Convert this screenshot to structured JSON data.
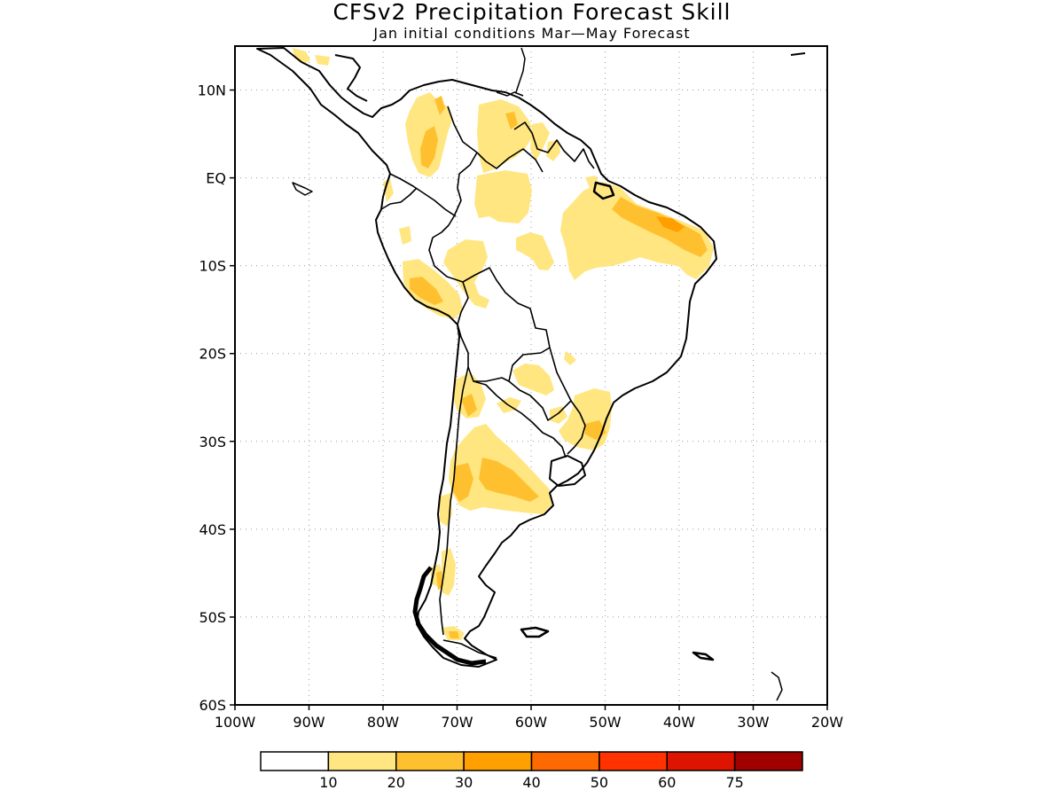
{
  "title": "CFSv2 Precipitation Forecast Skill",
  "subtitle": "Jan initial conditions  Mar—May Forecast",
  "map": {
    "region": "South America",
    "lon_range": [
      -100,
      -20
    ],
    "lat_range": [
      -60,
      15
    ],
    "lat_ticks": [
      "10N",
      "EQ",
      "10S",
      "20S",
      "30S",
      "40S",
      "50S",
      "60S"
    ],
    "lon_ticks": [
      "100W",
      "90W",
      "80W",
      "70W",
      "60W",
      "50W",
      "40W",
      "30W",
      "20W"
    ],
    "grid": "dotted"
  },
  "legend": {
    "labels": [
      "10",
      "20",
      "30",
      "40",
      "50",
      "60",
      "75"
    ],
    "colors": [
      "#ffffff",
      "#ffe680",
      "#ffc030",
      "#ff9f00",
      "#ff6a00",
      "#ff3200",
      "#dd1400",
      "#a00000"
    ]
  }
}
